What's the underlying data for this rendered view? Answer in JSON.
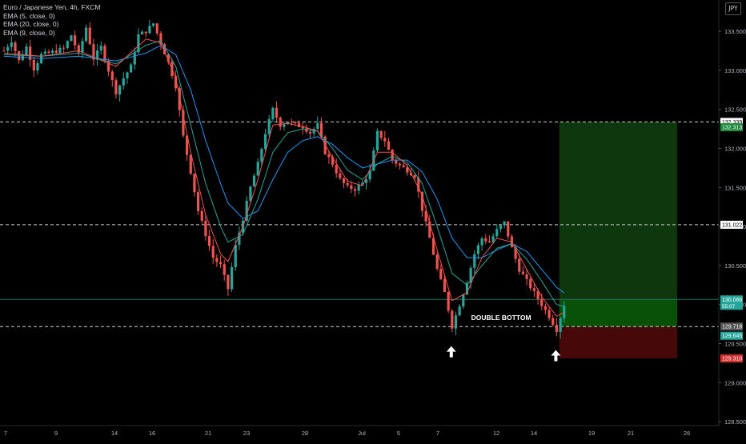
{
  "header": {
    "title": "Euro / Japanese Yen, 4h, FXCM",
    "indicators": [
      "EMA (5, close, 0)",
      "EMA (20, close, 0)",
      "EMA (9, close, 0)"
    ],
    "currency": "JPY"
  },
  "colors": {
    "background": "#000000",
    "up": "#26a69a",
    "down": "#ef5350",
    "ema5": "#ef5350",
    "ema20": "#2196f3",
    "ema9": "#26a69a",
    "target_zone": "#0f3d0f",
    "stop_zone": "#4a0808",
    "axis_text": "#b2b5be"
  },
  "chart_data": {
    "type": "candlestick",
    "title": "Euro / Japanese Yen, 4h, FXCM",
    "xlabel": "",
    "ylabel": "",
    "ylim": [
      128.45,
      133.9
    ],
    "grid": false,
    "y_ticks": [
      "133.500",
      "133.000",
      "132.500",
      "132.000",
      "131.500",
      "131.000",
      "130.500",
      "130.000",
      "129.500",
      "129.000",
      "128.500"
    ],
    "x_ticks": [
      "7",
      "9",
      "14",
      "16",
      "21",
      "23",
      "28",
      "Jul",
      "5",
      "7",
      "12",
      "14",
      "19",
      "21",
      "26"
    ],
    "price_path": [
      [
        0,
        133.25
      ],
      [
        1,
        133.38
      ],
      [
        2,
        133.12
      ],
      [
        3,
        133.3
      ],
      [
        4,
        133.02
      ],
      [
        5,
        133.2
      ],
      [
        6,
        133.22
      ],
      [
        7,
        133.25
      ],
      [
        8,
        133.28
      ],
      [
        9,
        133.45
      ],
      [
        10,
        133.2
      ],
      [
        11,
        133.55
      ],
      [
        12,
        133.15
      ],
      [
        13,
        133.3
      ],
      [
        14,
        133.0
      ],
      [
        15,
        132.72
      ],
      [
        16,
        132.9
      ],
      [
        17,
        133.05
      ],
      [
        18,
        133.45
      ],
      [
        19,
        133.5
      ],
      [
        20,
        133.6
      ],
      [
        21,
        133.35
      ],
      [
        22,
        133.1
      ],
      [
        23,
        132.8
      ],
      [
        24,
        132.15
      ],
      [
        25,
        131.7
      ],
      [
        26,
        131.2
      ],
      [
        27,
        130.9
      ],
      [
        28,
        130.6
      ],
      [
        29,
        130.5
      ],
      [
        30,
        130.2
      ],
      [
        31,
        130.75
      ],
      [
        32,
        131.1
      ],
      [
        33,
        131.5
      ],
      [
        34,
        131.8
      ],
      [
        35,
        132.2
      ],
      [
        36,
        132.5
      ],
      [
        37,
        132.3
      ],
      [
        38,
        132.35
      ],
      [
        39,
        132.3
      ],
      [
        40,
        132.28
      ],
      [
        41,
        132.2
      ],
      [
        42,
        132.3
      ],
      [
        43,
        131.95
      ],
      [
        44,
        131.8
      ],
      [
        45,
        131.6
      ],
      [
        46,
        131.5
      ],
      [
        47,
        131.48
      ],
      [
        48,
        131.55
      ],
      [
        49,
        131.7
      ],
      [
        50,
        132.2
      ],
      [
        51,
        132.1
      ],
      [
        52,
        131.85
      ],
      [
        53,
        131.78
      ],
      [
        54,
        131.72
      ],
      [
        55,
        131.65
      ],
      [
        56,
        131.22
      ],
      [
        57,
        130.85
      ],
      [
        58,
        130.45
      ],
      [
        59,
        130.15
      ],
      [
        60,
        129.72
      ],
      [
        61,
        130.0
      ],
      [
        62,
        130.3
      ],
      [
        63,
        130.65
      ],
      [
        64,
        130.85
      ],
      [
        65,
        130.8
      ],
      [
        66,
        130.95
      ],
      [
        67,
        131.05
      ],
      [
        68,
        130.72
      ],
      [
        69,
        130.45
      ],
      [
        70,
        130.3
      ],
      [
        71,
        130.15
      ],
      [
        72,
        130.0
      ],
      [
        73,
        129.85
      ],
      [
        74,
        129.68
      ],
      [
        75,
        130.0
      ]
    ],
    "ema5_path": [
      [
        0,
        133.22
      ],
      [
        5,
        133.18
      ],
      [
        10,
        133.25
      ],
      [
        15,
        133.05
      ],
      [
        19,
        133.4
      ],
      [
        21,
        133.35
      ],
      [
        23,
        132.9
      ],
      [
        25,
        131.95
      ],
      [
        27,
        131.15
      ],
      [
        29,
        130.65
      ],
      [
        30,
        130.55
      ],
      [
        32,
        131.0
      ],
      [
        34,
        131.6
      ],
      [
        36,
        132.3
      ],
      [
        38,
        132.32
      ],
      [
        40,
        132.28
      ],
      [
        42,
        132.22
      ],
      [
        44,
        131.88
      ],
      [
        46,
        131.58
      ],
      [
        48,
        131.52
      ],
      [
        50,
        131.95
      ],
      [
        52,
        131.95
      ],
      [
        54,
        131.78
      ],
      [
        56,
        131.4
      ],
      [
        58,
        130.7
      ],
      [
        60,
        130.05
      ],
      [
        62,
        130.15
      ],
      [
        64,
        130.6
      ],
      [
        66,
        130.85
      ],
      [
        68,
        130.8
      ],
      [
        70,
        130.45
      ],
      [
        72,
        130.1
      ],
      [
        74,
        129.85
      ],
      [
        75,
        129.9
      ]
    ],
    "ema9_path": [
      [
        0,
        133.2
      ],
      [
        5,
        133.18
      ],
      [
        10,
        133.22
      ],
      [
        15,
        133.08
      ],
      [
        19,
        133.32
      ],
      [
        21,
        133.38
      ],
      [
        23,
        133.05
      ],
      [
        25,
        132.3
      ],
      [
        27,
        131.55
      ],
      [
        29,
        131.0
      ],
      [
        30,
        130.8
      ],
      [
        32,
        130.9
      ],
      [
        34,
        131.35
      ],
      [
        36,
        131.95
      ],
      [
        38,
        132.2
      ],
      [
        40,
        132.25
      ],
      [
        42,
        132.22
      ],
      [
        44,
        132.0
      ],
      [
        46,
        131.72
      ],
      [
        48,
        131.6
      ],
      [
        50,
        131.8
      ],
      [
        52,
        131.9
      ],
      [
        54,
        131.82
      ],
      [
        56,
        131.55
      ],
      [
        58,
        131.0
      ],
      [
        60,
        130.4
      ],
      [
        62,
        130.25
      ],
      [
        64,
        130.5
      ],
      [
        66,
        130.72
      ],
      [
        68,
        130.78
      ],
      [
        70,
        130.58
      ],
      [
        72,
        130.3
      ],
      [
        74,
        130.0
      ],
      [
        75,
        129.98
      ]
    ],
    "ema20_path": [
      [
        0,
        133.18
      ],
      [
        5,
        133.15
      ],
      [
        10,
        133.18
      ],
      [
        15,
        133.12
      ],
      [
        19,
        133.22
      ],
      [
        21,
        133.32
      ],
      [
        23,
        133.2
      ],
      [
        25,
        132.75
      ],
      [
        27,
        132.1
      ],
      [
        29,
        131.55
      ],
      [
        30,
        131.3
      ],
      [
        32,
        131.1
      ],
      [
        34,
        131.2
      ],
      [
        36,
        131.6
      ],
      [
        38,
        131.95
      ],
      [
        40,
        132.1
      ],
      [
        42,
        132.15
      ],
      [
        44,
        132.05
      ],
      [
        46,
        131.88
      ],
      [
        48,
        131.75
      ],
      [
        50,
        131.8
      ],
      [
        52,
        131.85
      ],
      [
        54,
        131.85
      ],
      [
        56,
        131.7
      ],
      [
        58,
        131.35
      ],
      [
        60,
        130.85
      ],
      [
        62,
        130.6
      ],
      [
        64,
        130.6
      ],
      [
        66,
        130.7
      ],
      [
        68,
        130.78
      ],
      [
        70,
        130.68
      ],
      [
        72,
        130.45
      ],
      [
        74,
        130.22
      ],
      [
        75,
        130.15
      ]
    ],
    "levels": [
      {
        "label": "132.339",
        "value": 132.339,
        "style": "dashed",
        "tag_color": "#ffffff",
        "text_color": "#000000"
      },
      {
        "label": "132.313",
        "value": 132.27,
        "style": "none",
        "tag_color": "#1b8a3a",
        "text_color": "#ffffff"
      },
      {
        "label": "131.022",
        "value": 131.022,
        "style": "dashed",
        "tag_color": "#ffffff",
        "text_color": "#000000"
      },
      {
        "label": "130.066",
        "value": 130.066,
        "style": "solid",
        "tag_color": "#26a69a",
        "text_color": "#ffffff",
        "sub_label": "55:07"
      },
      {
        "label": "129.718",
        "value": 129.718,
        "style": "dashed",
        "tag_color": "#555555",
        "text_color": "#ffffff"
      },
      {
        "label": "129.645",
        "value": 129.6,
        "style": "none",
        "tag_color": "#26a69a",
        "text_color": "#ffffff"
      },
      {
        "label": "129.310",
        "value": 129.31,
        "style": "none",
        "tag_color": "#d32f2f",
        "text_color": "#ffffff"
      }
    ],
    "position": {
      "entry": 130.066,
      "target": 132.339,
      "stop": 129.31,
      "start_index": 75
    },
    "annotations": [
      {
        "text": "DOUBLE BOTTOM",
        "index": 67,
        "value": 129.8
      },
      {
        "text": "",
        "type": "arrow-up",
        "index": 60,
        "value": 129.55
      },
      {
        "text": "",
        "type": "arrow-up",
        "index": 74,
        "value": 129.5
      }
    ]
  }
}
